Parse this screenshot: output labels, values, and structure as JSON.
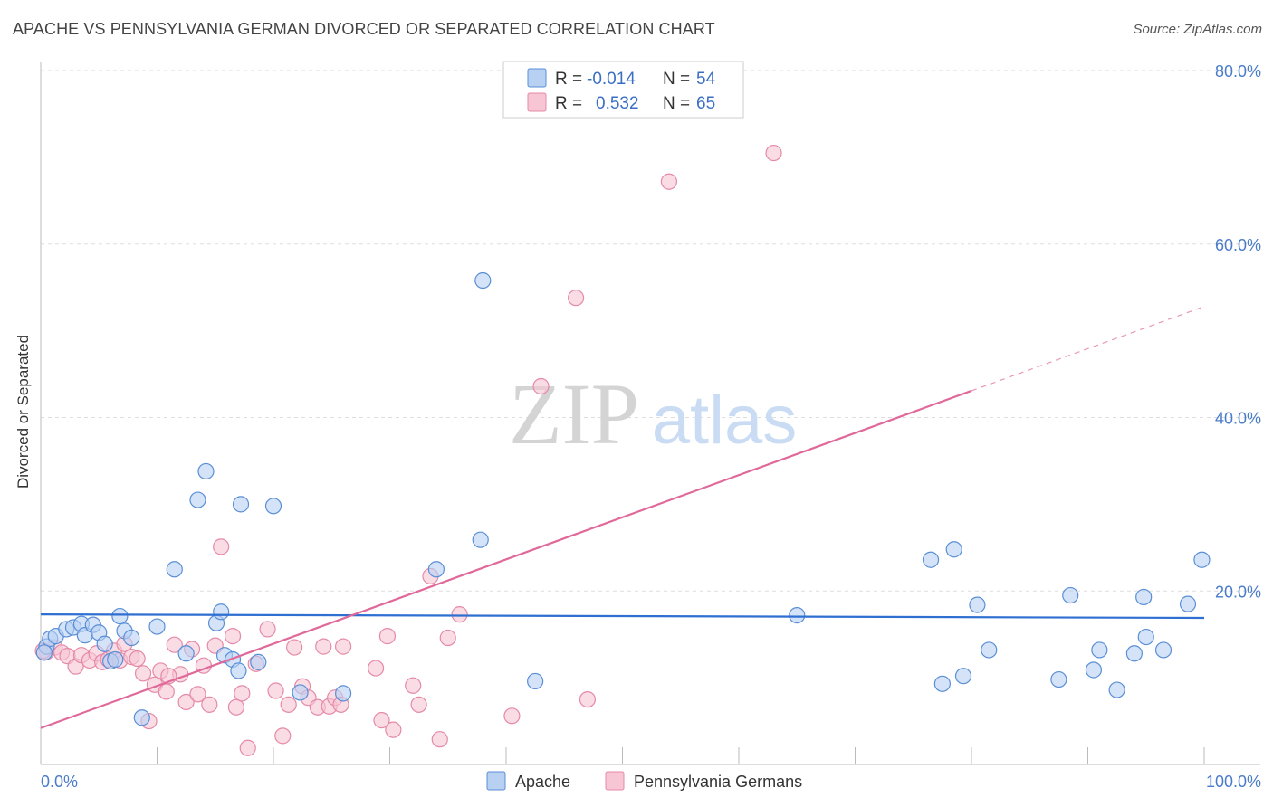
{
  "header": {
    "title": "APACHE VS PENNSYLVANIA GERMAN DIVORCED OR SEPARATED CORRELATION CHART",
    "source": "Source: ZipAtlas.com"
  },
  "watermark": {
    "zip": "ZIP",
    "atlas": "atlas"
  },
  "legend_top": {
    "rows": [
      {
        "r_label": "R =",
        "r_value": "-0.014",
        "n_label": "N =",
        "n_value": "54"
      },
      {
        "r_label": "R =",
        "r_value": "0.532",
        "n_label": "N =",
        "n_value": "65"
      }
    ]
  },
  "colors": {
    "apache_fill": "#b8d1f3",
    "apache_stroke": "#5a8fd6",
    "apache_line": "#2e6fd1",
    "pa_fill": "#f7c5d3",
    "pa_stroke": "#e58aa8",
    "pa_line": "#e0699a",
    "tick": "#4a7cc9",
    "grid": "#dddddd"
  },
  "chart_data": {
    "type": "scatter",
    "title": "APACHE VS PENNSYLVANIA GERMAN DIVORCED OR SEPARATED CORRELATION CHART",
    "xlabel": "",
    "ylabel": "Divorced or Separated",
    "xlim": [
      0,
      100
    ],
    "ylim": [
      0,
      80
    ],
    "x_ticks": [
      "0.0%",
      "100.0%"
    ],
    "y_ticks": [
      {
        "value": 20,
        "label": "20.0%"
      },
      {
        "value": 40,
        "label": "40.0%"
      },
      {
        "value": 60,
        "label": "60.0%"
      },
      {
        "value": 80,
        "label": "80.0%"
      }
    ],
    "grid": true,
    "legend_position": "top-center",
    "series": [
      {
        "name": "Apache",
        "trend": {
          "x0": 0,
          "y0": 17.3,
          "x1": 100,
          "y1": 16.9,
          "solid_until": 100
        },
        "points": [
          [
            0.5,
            13.6
          ],
          [
            0.8,
            14.5
          ],
          [
            1.3,
            14.8
          ],
          [
            2.2,
            15.6
          ],
          [
            2.8,
            15.8
          ],
          [
            3.5,
            16.2
          ],
          [
            3.8,
            14.9
          ],
          [
            4.5,
            16.1
          ],
          [
            5.0,
            15.2
          ],
          [
            5.5,
            13.9
          ],
          [
            6.0,
            11.9
          ],
          [
            6.4,
            12.1
          ],
          [
            6.8,
            17.1
          ],
          [
            7.2,
            15.4
          ],
          [
            7.8,
            14.6
          ],
          [
            8.7,
            5.4
          ],
          [
            10.0,
            15.9
          ],
          [
            11.5,
            22.5
          ],
          [
            12.5,
            12.8
          ],
          [
            13.5,
            30.5
          ],
          [
            14.2,
            33.8
          ],
          [
            15.1,
            16.3
          ],
          [
            15.5,
            17.6
          ],
          [
            15.8,
            12.6
          ],
          [
            16.5,
            12.1
          ],
          [
            17.0,
            10.8
          ],
          [
            18.7,
            11.8
          ],
          [
            17.2,
            30.0
          ],
          [
            20.0,
            29.8
          ],
          [
            22.3,
            8.3
          ],
          [
            26.0,
            8.2
          ],
          [
            34.0,
            22.5
          ],
          [
            37.8,
            25.9
          ],
          [
            38.0,
            55.8
          ],
          [
            42.5,
            9.6
          ],
          [
            65.0,
            17.2
          ],
          [
            76.5,
            23.6
          ],
          [
            77.5,
            9.3
          ],
          [
            78.5,
            24.8
          ],
          [
            79.3,
            10.2
          ],
          [
            80.5,
            18.4
          ],
          [
            81.5,
            13.2
          ],
          [
            87.5,
            9.8
          ],
          [
            88.5,
            19.5
          ],
          [
            90.5,
            10.9
          ],
          [
            91.0,
            13.2
          ],
          [
            92.5,
            8.6
          ],
          [
            94.0,
            12.8
          ],
          [
            95.0,
            14.7
          ],
          [
            94.8,
            19.3
          ],
          [
            96.5,
            13.2
          ],
          [
            98.6,
            18.5
          ],
          [
            99.8,
            23.6
          ],
          [
            0.3,
            12.9
          ]
        ]
      },
      {
        "name": "Pennsylvania Germans",
        "trend": {
          "x0": 0,
          "y0": 4.2,
          "x1": 100,
          "y1": 52.8,
          "solid_until": 80
        },
        "points": [
          [
            0.5,
            13.0
          ],
          [
            1.2,
            13.5
          ],
          [
            1.8,
            12.9
          ],
          [
            2.3,
            12.5
          ],
          [
            3.0,
            11.3
          ],
          [
            3.5,
            12.6
          ],
          [
            4.2,
            12.0
          ],
          [
            4.8,
            12.8
          ],
          [
            5.3,
            11.8
          ],
          [
            5.8,
            12.1
          ],
          [
            6.3,
            13.1
          ],
          [
            6.8,
            12.0
          ],
          [
            7.2,
            13.9
          ],
          [
            7.8,
            12.4
          ],
          [
            8.3,
            12.2
          ],
          [
            8.8,
            10.5
          ],
          [
            9.3,
            5.0
          ],
          [
            9.8,
            9.2
          ],
          [
            10.3,
            10.8
          ],
          [
            10.8,
            8.4
          ],
          [
            11.5,
            13.8
          ],
          [
            12.0,
            10.4
          ],
          [
            12.5,
            7.2
          ],
          [
            13.0,
            13.3
          ],
          [
            13.5,
            8.1
          ],
          [
            14.0,
            11.4
          ],
          [
            14.5,
            6.9
          ],
          [
            15.0,
            13.7
          ],
          [
            15.5,
            25.1
          ],
          [
            16.5,
            14.8
          ],
          [
            16.8,
            6.6
          ],
          [
            17.3,
            8.2
          ],
          [
            17.8,
            1.9
          ],
          [
            18.5,
            11.6
          ],
          [
            19.5,
            15.6
          ],
          [
            20.2,
            8.5
          ],
          [
            20.8,
            3.3
          ],
          [
            21.3,
            6.9
          ],
          [
            21.8,
            13.5
          ],
          [
            22.5,
            9.0
          ],
          [
            23.0,
            7.7
          ],
          [
            23.8,
            6.6
          ],
          [
            24.3,
            13.6
          ],
          [
            24.8,
            6.7
          ],
          [
            25.3,
            7.7
          ],
          [
            25.8,
            6.9
          ],
          [
            26.0,
            13.6
          ],
          [
            28.8,
            11.1
          ],
          [
            29.3,
            5.1
          ],
          [
            29.8,
            14.8
          ],
          [
            30.3,
            4.0
          ],
          [
            32.0,
            9.1
          ],
          [
            32.5,
            6.9
          ],
          [
            33.5,
            21.7
          ],
          [
            34.3,
            2.9
          ],
          [
            35.0,
            14.6
          ],
          [
            36.0,
            17.3
          ],
          [
            40.5,
            5.6
          ],
          [
            43.0,
            43.6
          ],
          [
            46.0,
            53.8
          ],
          [
            47.0,
            7.5
          ],
          [
            54.0,
            67.2
          ],
          [
            63.0,
            70.5
          ],
          [
            0.2,
            13.1
          ],
          [
            11.0,
            10.2
          ]
        ]
      }
    ]
  },
  "bottom_legend": {
    "items": [
      {
        "label": "Apache"
      },
      {
        "label": "Pennsylvania Germans"
      }
    ]
  }
}
